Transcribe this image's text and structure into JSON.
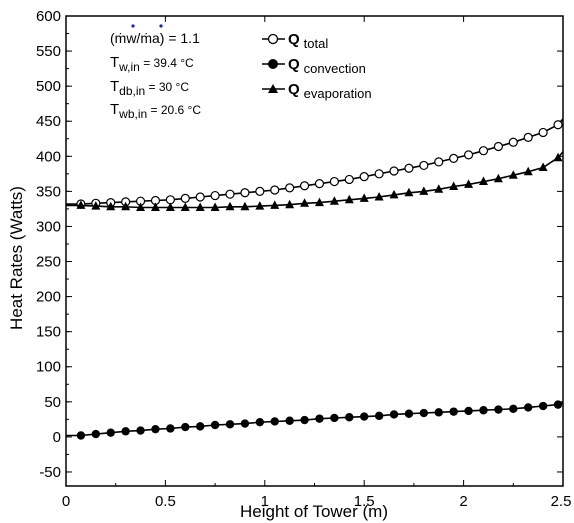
{
  "chart_data": {
    "type": "line",
    "xlabel": "Height of Tower (m)",
    "ylabel": "Heat Rates (Watts)",
    "xlim": [
      0,
      2.5
    ],
    "ylim": [
      -70,
      600
    ],
    "xticks": [
      "0",
      "0.5",
      "1",
      "1.5",
      "2",
      "2.5"
    ],
    "yticks": [
      "-50",
      "0",
      "50",
      "100",
      "150",
      "200",
      "250",
      "300",
      "350",
      "400",
      "450",
      "500",
      "550",
      "600"
    ],
    "grid": false,
    "legend_position": "top-right",
    "annotations": {
      "line1": "(ṁw/ṁa) = 1.1",
      "line2_main": "T",
      "line2_sub": "w,in",
      "line2_rest": " = 39.4 °C",
      "line3_main": "T",
      "line3_sub": "db,in",
      "line3_rest": " = 30 °C",
      "line4_main": "T",
      "line4_sub": "wb,in",
      "line4_rest": " = 20.6 °C"
    },
    "series": [
      {
        "name": "Q total",
        "main": "Q",
        "sub": "total",
        "marker": "circle-open",
        "x": [
          0.075,
          0.15,
          0.225,
          0.3,
          0.375,
          0.45,
          0.525,
          0.6,
          0.675,
          0.75,
          0.825,
          0.9,
          0.975,
          1.05,
          1.125,
          1.2,
          1.275,
          1.35,
          1.425,
          1.5,
          1.575,
          1.65,
          1.725,
          1.8,
          1.875,
          1.95,
          2.025,
          2.1,
          2.175,
          2.25,
          2.325,
          2.4,
          2.475
        ],
        "y": [
          332,
          333,
          334,
          335,
          336,
          337,
          338,
          340,
          342,
          344,
          346,
          348,
          350,
          352,
          355,
          358,
          361,
          364,
          367,
          371,
          375,
          379,
          383,
          387,
          392,
          397,
          402,
          408,
          414,
          420,
          427,
          434,
          445
        ]
      },
      {
        "name": "Q convection",
        "main": "Q",
        "sub": "convection",
        "marker": "circle-filled",
        "x": [
          0.075,
          0.15,
          0.225,
          0.3,
          0.375,
          0.45,
          0.525,
          0.6,
          0.675,
          0.75,
          0.825,
          0.9,
          0.975,
          1.05,
          1.125,
          1.2,
          1.275,
          1.35,
          1.425,
          1.5,
          1.575,
          1.65,
          1.725,
          1.8,
          1.875,
          1.95,
          2.025,
          2.1,
          2.175,
          2.25,
          2.325,
          2.4,
          2.475
        ],
        "y": [
          2,
          4,
          6,
          8,
          9,
          11,
          12,
          14,
          15,
          17,
          18,
          19,
          21,
          22,
          23,
          24,
          26,
          27,
          28,
          29,
          30,
          32,
          33,
          34,
          35,
          36,
          37,
          38,
          39,
          40,
          42,
          44,
          46
        ]
      },
      {
        "name": "Q evaporation",
        "main": "Q",
        "sub": "evaporation",
        "marker": "triangle-filled",
        "x": [
          0.075,
          0.15,
          0.225,
          0.3,
          0.375,
          0.45,
          0.525,
          0.6,
          0.675,
          0.75,
          0.825,
          0.9,
          0.975,
          1.05,
          1.125,
          1.2,
          1.275,
          1.35,
          1.425,
          1.5,
          1.575,
          1.65,
          1.725,
          1.8,
          1.875,
          1.95,
          2.025,
          2.1,
          2.175,
          2.25,
          2.325,
          2.4,
          2.475
        ],
        "y": [
          330,
          329,
          328,
          328,
          327,
          327,
          327,
          327,
          327,
          327,
          328,
          328,
          329,
          330,
          331,
          333,
          334,
          336,
          338,
          340,
          342,
          345,
          348,
          350,
          353,
          357,
          360,
          364,
          368,
          373,
          378,
          384,
          398
        ]
      }
    ]
  }
}
